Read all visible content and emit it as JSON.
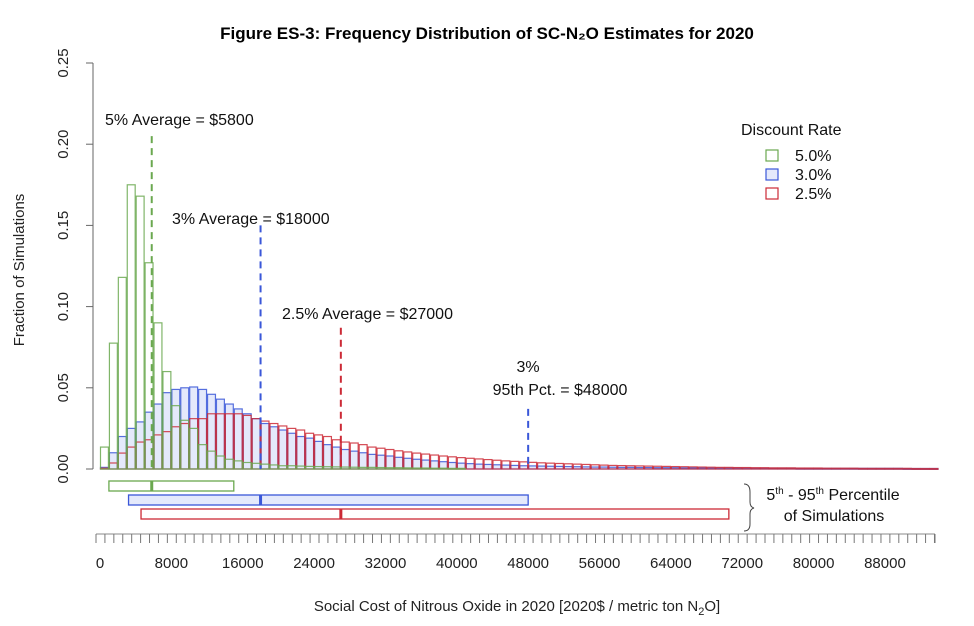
{
  "chart_data": {
    "type": "bar",
    "title": "Figure ES-3: Frequency Distribution of SC-N₂O Estimates for 2020",
    "xlabel": "Social Cost of Nitrous Oxide in 2020 [2020$ / metric ton N",
    "xlabel_sub": "2",
    "xlabel_end": "O]",
    "ylabel": "Fraction of Simulations",
    "xlim": [
      0,
      94000
    ],
    "ylim": [
      0,
      0.25
    ],
    "bin_width": 1000,
    "x_tick_labels": [
      "0",
      "8000",
      "16000",
      "24000",
      "32000",
      "40000",
      "48000",
      "56000",
      "64000",
      "72000",
      "80000",
      "88000"
    ],
    "x_tick_values": [
      0,
      8000,
      16000,
      24000,
      32000,
      40000,
      48000,
      56000,
      64000,
      72000,
      80000,
      88000
    ],
    "y_tick_labels": [
      "0.00",
      "0.05",
      "0.10",
      "0.15",
      "0.20",
      "0.25"
    ],
    "y_tick_values": [
      0,
      0.05,
      0.1,
      0.15,
      0.2,
      0.25
    ],
    "legend": {
      "title": "Discount Rate",
      "position": "top-right",
      "entries": [
        "5.0%",
        "3.0%",
        "2.5%"
      ]
    },
    "series": [
      {
        "name": "5.0%",
        "color": "#6aa84f",
        "fill": "none",
        "values": [
          0.0135,
          0.0775,
          0.118,
          0.175,
          0.168,
          0.127,
          0.09,
          0.06,
          0.039,
          0.03,
          0.025,
          0.015,
          0.011,
          0.008,
          0.006,
          0.005,
          0.004,
          0.0035,
          0.003,
          0.0025,
          0.002,
          0.002,
          0.0018,
          0.0016,
          0.0015,
          0.0014,
          0.0013,
          0.0012,
          0.0011,
          0.001,
          0.001,
          0.0009,
          0.0008,
          0.0008,
          0.0007,
          0.0006,
          0.0006,
          0.0005,
          0.0005,
          0.0004,
          0.0004
        ]
      },
      {
        "name": "3.0%",
        "color": "#3a57d8",
        "fill": "#e4e9fb",
        "values": [
          0.001,
          0.01,
          0.02,
          0.025,
          0.029,
          0.035,
          0.04,
          0.047,
          0.049,
          0.05,
          0.0505,
          0.049,
          0.046,
          0.043,
          0.04,
          0.037,
          0.034,
          0.031,
          0.028,
          0.026,
          0.024,
          0.022,
          0.02,
          0.019,
          0.017,
          0.015,
          0.0135,
          0.012,
          0.011,
          0.01,
          0.009,
          0.0085,
          0.008,
          0.0072,
          0.0066,
          0.006,
          0.0055,
          0.005,
          0.0045,
          0.004,
          0.0036,
          0.0033,
          0.003,
          0.0028,
          0.0026,
          0.0024,
          0.0022,
          0.002,
          0.0019,
          0.0018,
          0.0017,
          0.0016,
          0.0015,
          0.0014,
          0.0013,
          0.0012,
          0.0012,
          0.0011,
          0.001,
          0.001,
          0.0009,
          0.0009,
          0.0008,
          0.0008,
          0.0008,
          0.0007,
          0.0007,
          0.0007,
          0.0006,
          0.0006,
          0.0006,
          0.0006,
          0.0005,
          0.0005,
          0.0005,
          0.0005,
          0.0005,
          0.0005,
          0.0004,
          0.0004,
          0.0004,
          0.0004,
          0.0004,
          0.0004,
          0.0004,
          0.0004,
          0.0004,
          0.0004,
          0.0004,
          0.0004,
          0.0003,
          0.0003,
          0.0003,
          0.0003
        ]
      },
      {
        "name": "2.5%",
        "color": "#cc2a36",
        "fill": "none",
        "values": [
          0.0005,
          0.0037,
          0.0098,
          0.0135,
          0.0166,
          0.018,
          0.021,
          0.023,
          0.026,
          0.028,
          0.031,
          0.031,
          0.034,
          0.034,
          0.034,
          0.034,
          0.033,
          0.031,
          0.0295,
          0.028,
          0.0265,
          0.025,
          0.024,
          0.022,
          0.021,
          0.02,
          0.018,
          0.0166,
          0.016,
          0.015,
          0.0135,
          0.0128,
          0.012,
          0.0112,
          0.0105,
          0.0098,
          0.0092,
          0.0086,
          0.008,
          0.0075,
          0.007,
          0.0066,
          0.0062,
          0.0058,
          0.0054,
          0.005,
          0.0047,
          0.0044,
          0.0041,
          0.0038,
          0.0036,
          0.0034,
          0.0032,
          0.003,
          0.0028,
          0.0026,
          0.0024,
          0.0022,
          0.0021,
          0.002,
          0.0019,
          0.0018,
          0.0017,
          0.0016,
          0.0015,
          0.0014,
          0.0013,
          0.0012,
          0.0011,
          0.001,
          0.001,
          0.0009,
          0.0009,
          0.0008,
          0.0008,
          0.0007,
          0.0007,
          0.0007,
          0.0006,
          0.0006,
          0.0006,
          0.0005,
          0.0005,
          0.0005,
          0.0005,
          0.0004,
          0.0004,
          0.0004,
          0.0004,
          0.0004,
          0.0004,
          0.0003,
          0.0003,
          0.0003
        ]
      }
    ],
    "reference_lines": [
      {
        "name": "5% average",
        "x": 5800,
        "top": 0.205,
        "color": "#6aa84f",
        "label": "5% Average = $5800"
      },
      {
        "name": "3% average",
        "x": 18000,
        "top": 0.15,
        "color": "#3a57d8",
        "label": "3% Average = $18000"
      },
      {
        "name": "2.5% average",
        "x": 27000,
        "top": 0.087,
        "color": "#cc2a36",
        "label": "2.5% Average = $27000"
      },
      {
        "name": "3% 95th percentile",
        "x": 48000,
        "top": 0.037,
        "color": "#3a57d8",
        "label_line1": "3%",
        "label_line2": "95th Pct. = $48000"
      }
    ],
    "percentile_ranges": [
      {
        "name": "5.0%",
        "p5": 1000,
        "p95": 15000,
        "mean": 5800,
        "color": "#6aa84f",
        "fill": "#ffffff"
      },
      {
        "name": "3.0%",
        "p5": 3200,
        "p95": 48000,
        "mean": 18000,
        "color": "#3a57d8",
        "fill": "#e4e9fb"
      },
      {
        "name": "2.5%",
        "p5": 4600,
        "p95": 70500,
        "mean": 27000,
        "color": "#cc2a36",
        "fill": "#ffffff"
      }
    ],
    "percentile_label_line1_a": "5",
    "percentile_label_sup1": "th",
    "percentile_label_mid": " - 95",
    "percentile_label_sup2": "th",
    "percentile_label_end": " Percentile",
    "percentile_label_line2": "of Simulations"
  }
}
